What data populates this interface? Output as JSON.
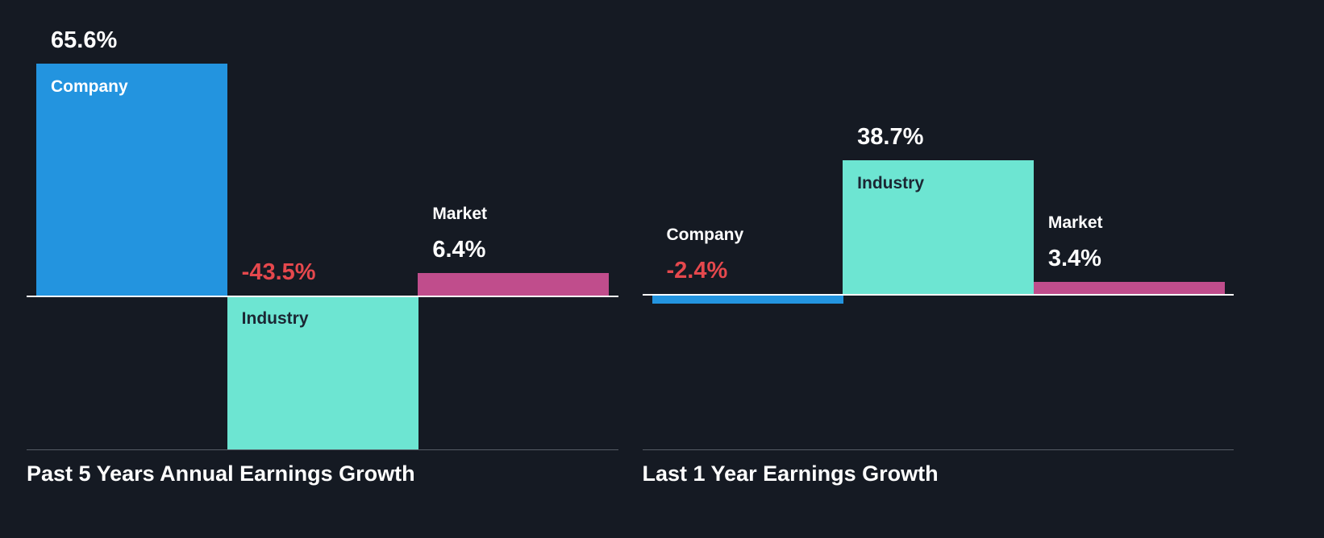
{
  "page": {
    "background": "#151a23"
  },
  "colors": {
    "company_bar": "#2394df",
    "industry_bar": "#6de5d2",
    "market_bar": "#c04d8c",
    "negative_value_text": "#e5484d",
    "positive_value_text": "#ffffff",
    "baseline": "#ffffff",
    "axis_bottom": "#565d66"
  },
  "chart_data": [
    {
      "type": "bar",
      "title": "Past 5 Years Annual Earnings Growth",
      "xlabel": "",
      "ylabel": "",
      "categories": [
        "Company",
        "Industry",
        "Market"
      ],
      "values": [
        65.6,
        -43.5,
        6.4
      ],
      "ylim": [
        -43.5,
        81.3
      ],
      "grid": false,
      "legend": "none",
      "bars": [
        {
          "label": "Company",
          "value": 65.6,
          "display": "65.6%",
          "color": "#2394df",
          "value_color": "#ffffff",
          "label_color": "#ffffff",
          "label_inside": true
        },
        {
          "label": "Industry",
          "value": -43.5,
          "display": "-43.5%",
          "color": "#6de5d2",
          "value_color": "#e5484d",
          "label_color": "#1b2633",
          "label_inside": true
        },
        {
          "label": "Market",
          "value": 6.4,
          "display": "6.4%",
          "color": "#c04d8c",
          "value_color": "#ffffff",
          "label_color": "#ffffff",
          "label_inside": false
        }
      ]
    },
    {
      "type": "bar",
      "title": "Last 1 Year Earnings Growth",
      "xlabel": "",
      "ylabel": "",
      "categories": [
        "Company",
        "Industry",
        "Market"
      ],
      "values": [
        -2.4,
        38.7,
        3.4
      ],
      "ylim": [
        -45.0,
        82.5
      ],
      "grid": false,
      "legend": "none",
      "bars": [
        {
          "label": "Company",
          "value": -2.4,
          "display": "-2.4%",
          "color": "#2394df",
          "value_color": "#e5484d",
          "label_color": "#ffffff",
          "label_inside": false
        },
        {
          "label": "Industry",
          "value": 38.7,
          "display": "38.7%",
          "color": "#6de5d2",
          "value_color": "#ffffff",
          "label_color": "#1b2633",
          "label_inside": true
        },
        {
          "label": "Market",
          "value": 3.4,
          "display": "3.4%",
          "color": "#c04d8c",
          "value_color": "#ffffff",
          "label_color": "#ffffff",
          "label_inside": false
        }
      ]
    }
  ]
}
